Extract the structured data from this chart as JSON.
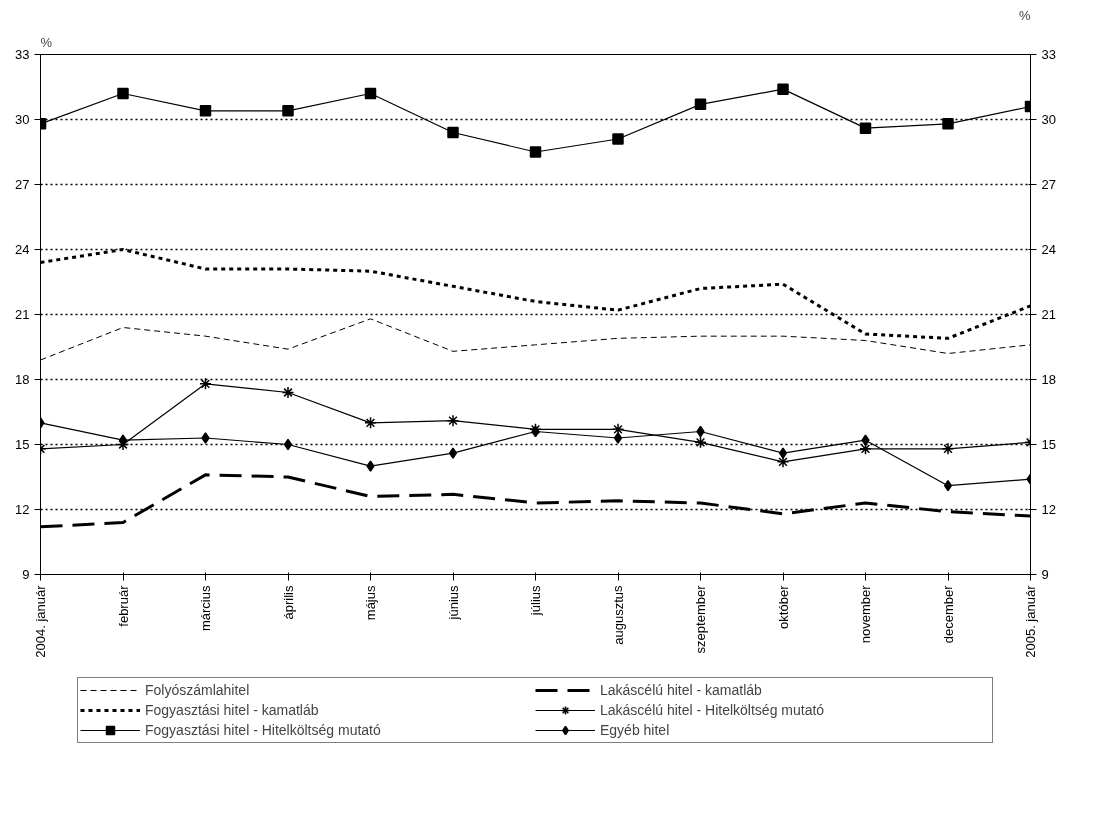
{
  "chart_data": {
    "type": "line",
    "categories": [
      "2004. január",
      "február",
      "március",
      "április",
      "május",
      "június",
      "július",
      "augusztus",
      "szeptember",
      "október",
      "november",
      "december",
      "2005. január"
    ],
    "ylabel": "%",
    "y2label": "%",
    "ylim": [
      9,
      33
    ],
    "yticks": [
      9,
      12,
      15,
      18,
      21,
      24,
      27,
      30,
      33
    ],
    "y2lim": [
      9,
      33
    ],
    "y2ticks": [
      9,
      12,
      15,
      18,
      21,
      24,
      27,
      30,
      33
    ],
    "grid": "y",
    "legend": "bottom",
    "series": [
      {
        "name": "Folyószámlahitel",
        "color": "#000000",
        "line_style": "dashed",
        "marker": "none",
        "values": [
          18.9,
          20.4,
          20.0,
          19.4,
          20.8,
          19.3,
          19.6,
          19.9,
          20.0,
          20.0,
          19.8,
          19.2,
          19.6
        ]
      },
      {
        "name": "Lakáscélú hitel - kamatláb",
        "color": "#000000",
        "line_style": "longdash",
        "marker": "none",
        "values": [
          11.2,
          11.4,
          13.6,
          13.5,
          12.6,
          12.7,
          12.3,
          12.4,
          12.3,
          11.8,
          12.3,
          11.9,
          11.7
        ]
      },
      {
        "name": "Fogyasztási hitel - kamatláb",
        "color": "#000000",
        "line_style": "dotted",
        "marker": "none",
        "values": [
          23.4,
          24.0,
          23.1,
          23.1,
          23.0,
          22.3,
          21.6,
          21.2,
          22.2,
          22.4,
          20.1,
          19.9,
          21.4
        ]
      },
      {
        "name": "Lakáscélú hitel - Hitelköltség mutató",
        "color": "#000000",
        "line_style": "solid",
        "marker": "cross",
        "values": [
          14.8,
          15.0,
          17.8,
          17.4,
          16.0,
          16.1,
          15.7,
          15.7,
          15.1,
          14.2,
          14.8,
          14.8,
          15.1
        ]
      },
      {
        "name": "Fogyasztási hitel - Hitelköltség mutató",
        "color": "#000000",
        "line_style": "solid",
        "marker": "square",
        "values": [
          29.8,
          31.2,
          30.4,
          30.4,
          31.2,
          29.4,
          28.5,
          29.1,
          30.7,
          31.4,
          29.6,
          29.8,
          30.6
        ]
      },
      {
        "name": "Egyéb hitel",
        "color": "#000000",
        "line_style": "solid",
        "marker": "diamond",
        "values": [
          16.0,
          15.2,
          15.3,
          15.0,
          14.0,
          14.6,
          15.6,
          15.3,
          15.6,
          14.6,
          15.2,
          13.1,
          13.4
        ]
      }
    ]
  }
}
